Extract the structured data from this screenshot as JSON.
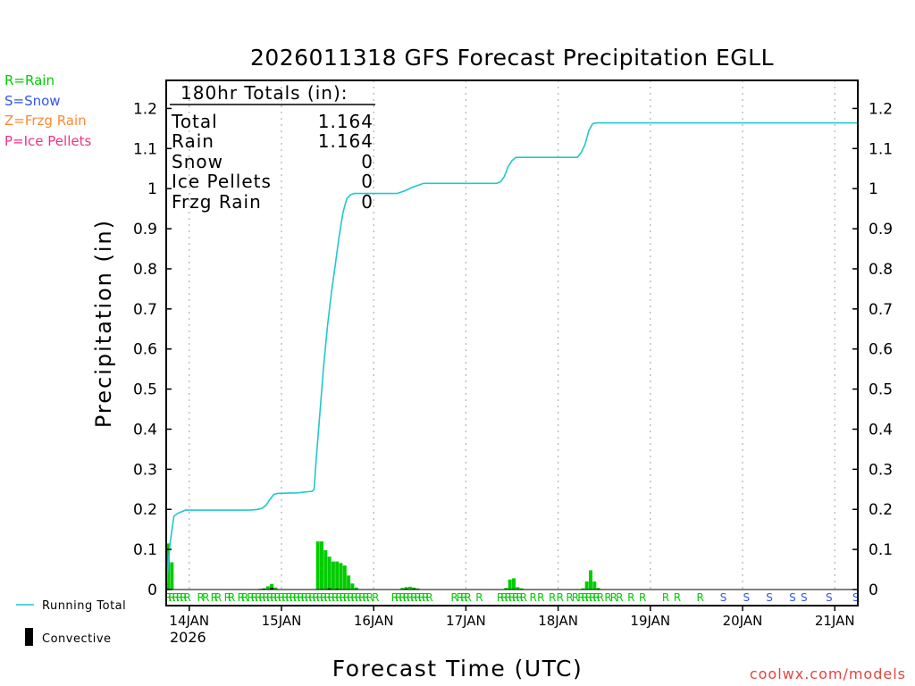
{
  "chart_data": {
    "type": "bar",
    "title": "2026011318 GFS Forecast Precipitation EGLL",
    "xlabel": "Forecast Time (UTC)",
    "ylabel": "Precipitation (in)",
    "ylim": [
      0,
      1.27
    ],
    "xlim_hours": [
      0,
      180
    ],
    "y_ticks": [
      "0",
      "0.1",
      "0.2",
      "0.3",
      "0.4",
      "0.5",
      "0.6",
      "0.7",
      "0.8",
      "0.9",
      "1",
      "1.1",
      "1.2"
    ],
    "x_ticks": [
      {
        "label": "14JAN",
        "hour": 6
      },
      {
        "label": "15JAN",
        "hour": 30
      },
      {
        "label": "16JAN",
        "hour": 54
      },
      {
        "label": "17JAN",
        "hour": 78
      },
      {
        "label": "18JAN",
        "hour": 102
      },
      {
        "label": "19JAN",
        "hour": 126
      },
      {
        "label": "20JAN",
        "hour": 150
      },
      {
        "label": "21JAN",
        "hour": 174
      }
    ],
    "year_label": "2026",
    "totals_header": "180hr Totals (in):",
    "totals": [
      {
        "label": "Total",
        "value": "1.164"
      },
      {
        "label": "Rain",
        "value": "1.164"
      },
      {
        "label": "Snow",
        "value": "0"
      },
      {
        "label": "Ice Pellets",
        "value": "0"
      },
      {
        "label": "Frzg Rain",
        "value": "0"
      }
    ],
    "bar_width_hours": 1,
    "precip_bars": [
      [
        0,
        0.115
      ],
      [
        1,
        0.068
      ],
      [
        24,
        0.002
      ],
      [
        25,
        0.003
      ],
      [
        26,
        0.008
      ],
      [
        27,
        0.014
      ],
      [
        28,
        0.005
      ],
      [
        39,
        0.12
      ],
      [
        40,
        0.12
      ],
      [
        41,
        0.098
      ],
      [
        42,
        0.082
      ],
      [
        43,
        0.07
      ],
      [
        44,
        0.07
      ],
      [
        45,
        0.066
      ],
      [
        46,
        0.06
      ],
      [
        47,
        0.035
      ],
      [
        48,
        0.015
      ],
      [
        49,
        0.005
      ],
      [
        61,
        0.004
      ],
      [
        62,
        0.006
      ],
      [
        63,
        0.007
      ],
      [
        64,
        0.005
      ],
      [
        65,
        0.003
      ],
      [
        88,
        0.004
      ],
      [
        89,
        0.025
      ],
      [
        90,
        0.028
      ],
      [
        91,
        0.006
      ],
      [
        92,
        0.003
      ],
      [
        108,
        0.003
      ],
      [
        109,
        0.02
      ],
      [
        110,
        0.048
      ],
      [
        111,
        0.02
      ],
      [
        112,
        0.004
      ]
    ],
    "convective_bars": [
      [
        25,
        0.002
      ],
      [
        27,
        0.004
      ],
      [
        42,
        0.003
      ],
      [
        44,
        0.002
      ],
      [
        62,
        0.002
      ],
      [
        64,
        0.002
      ]
    ],
    "running_total": [
      [
        0,
        0.0
      ],
      [
        0.5,
        0.06
      ],
      [
        1,
        0.115
      ],
      [
        2,
        0.183
      ],
      [
        3,
        0.19
      ],
      [
        5,
        0.198
      ],
      [
        10,
        0.198
      ],
      [
        22,
        0.198
      ],
      [
        24,
        0.2
      ],
      [
        25,
        0.203
      ],
      [
        26,
        0.21
      ],
      [
        27,
        0.225
      ],
      [
        28,
        0.237
      ],
      [
        29,
        0.24
      ],
      [
        34,
        0.241
      ],
      [
        38,
        0.245
      ],
      [
        38.5,
        0.25
      ],
      [
        39,
        0.32
      ],
      [
        40,
        0.44
      ],
      [
        41,
        0.56
      ],
      [
        42,
        0.66
      ],
      [
        43,
        0.74
      ],
      [
        44,
        0.81
      ],
      [
        45,
        0.88
      ],
      [
        46,
        0.94
      ],
      [
        47,
        0.975
      ],
      [
        48,
        0.985
      ],
      [
        49,
        0.988
      ],
      [
        52,
        0.988
      ],
      [
        60,
        0.988
      ],
      [
        62,
        0.994
      ],
      [
        64,
        1.003
      ],
      [
        66,
        1.01
      ],
      [
        67,
        1.013
      ],
      [
        72,
        1.013
      ],
      [
        80,
        1.013
      ],
      [
        86,
        1.013
      ],
      [
        87,
        1.017
      ],
      [
        88,
        1.03
      ],
      [
        89,
        1.055
      ],
      [
        90,
        1.07
      ],
      [
        91,
        1.078
      ],
      [
        95,
        1.078
      ],
      [
        100,
        1.078
      ],
      [
        107,
        1.078
      ],
      [
        108,
        1.09
      ],
      [
        109,
        1.11
      ],
      [
        110,
        1.145
      ],
      [
        111,
        1.162
      ],
      [
        112,
        1.164
      ],
      [
        180,
        1.164
      ]
    ],
    "ptype_row": [
      {
        "hour": 0.5,
        "type": "R"
      },
      {
        "hour": 1.5,
        "type": "R"
      },
      {
        "hour": 2.5,
        "type": "R"
      },
      {
        "hour": 3.5,
        "type": "R"
      },
      {
        "hour": 4.5,
        "type": "R"
      },
      {
        "hour": 5.5,
        "type": "R"
      },
      {
        "hour": 9,
        "type": "R"
      },
      {
        "hour": 10.3,
        "type": "R"
      },
      {
        "hour": 12.5,
        "type": "R"
      },
      {
        "hour": 13.5,
        "type": "R"
      },
      {
        "hour": 16,
        "type": "R"
      },
      {
        "hour": 17,
        "type": "R"
      },
      {
        "hour": 19.5,
        "type": "R"
      },
      {
        "hour": 20.5,
        "type": "R"
      },
      {
        "hour": 22,
        "type": "R"
      },
      {
        "hour": 23,
        "type": "R"
      },
      {
        "hour": 24,
        "type": "R"
      },
      {
        "hour": 25,
        "type": "R"
      },
      {
        "hour": 26,
        "type": "R"
      },
      {
        "hour": 27,
        "type": "R"
      },
      {
        "hour": 28,
        "type": "R"
      },
      {
        "hour": 29,
        "type": "R"
      },
      {
        "hour": 30,
        "type": "R"
      },
      {
        "hour": 31,
        "type": "R"
      },
      {
        "hour": 32,
        "type": "R"
      },
      {
        "hour": 33,
        "type": "R"
      },
      {
        "hour": 34,
        "type": "R"
      },
      {
        "hour": 35,
        "type": "R"
      },
      {
        "hour": 36,
        "type": "R"
      },
      {
        "hour": 37,
        "type": "R"
      },
      {
        "hour": 38,
        "type": "R"
      },
      {
        "hour": 39,
        "type": "R"
      },
      {
        "hour": 40,
        "type": "R"
      },
      {
        "hour": 41,
        "type": "R"
      },
      {
        "hour": 42,
        "type": "R"
      },
      {
        "hour": 43,
        "type": "R"
      },
      {
        "hour": 44,
        "type": "R"
      },
      {
        "hour": 45,
        "type": "R"
      },
      {
        "hour": 46,
        "type": "R"
      },
      {
        "hour": 47,
        "type": "R"
      },
      {
        "hour": 48,
        "type": "R"
      },
      {
        "hour": 49,
        "type": "R"
      },
      {
        "hour": 50,
        "type": "R"
      },
      {
        "hour": 51,
        "type": "R"
      },
      {
        "hour": 52,
        "type": "R"
      },
      {
        "hour": 53,
        "type": "R"
      },
      {
        "hour": 54.5,
        "type": "R"
      },
      {
        "hour": 59.5,
        "type": "R"
      },
      {
        "hour": 60.5,
        "type": "R"
      },
      {
        "hour": 61.5,
        "type": "R"
      },
      {
        "hour": 62.5,
        "type": "R"
      },
      {
        "hour": 63.5,
        "type": "R"
      },
      {
        "hour": 64.5,
        "type": "R"
      },
      {
        "hour": 65.5,
        "type": "R"
      },
      {
        "hour": 66.5,
        "type": "R"
      },
      {
        "hour": 67.5,
        "type": "R"
      },
      {
        "hour": 68.5,
        "type": "R"
      },
      {
        "hour": 75,
        "type": "R"
      },
      {
        "hour": 76.5,
        "type": "R"
      },
      {
        "hour": 77.5,
        "type": "R"
      },
      {
        "hour": 78.5,
        "type": "R"
      },
      {
        "hour": 81.5,
        "type": "R"
      },
      {
        "hour": 87,
        "type": "R"
      },
      {
        "hour": 88,
        "type": "R"
      },
      {
        "hour": 89,
        "type": "R"
      },
      {
        "hour": 90,
        "type": "R"
      },
      {
        "hour": 91,
        "type": "R"
      },
      {
        "hour": 92,
        "type": "R"
      },
      {
        "hour": 93,
        "type": "R"
      },
      {
        "hour": 95.5,
        "type": "R"
      },
      {
        "hour": 97.5,
        "type": "R"
      },
      {
        "hour": 100.5,
        "type": "R"
      },
      {
        "hour": 102.5,
        "type": "R"
      },
      {
        "hour": 105,
        "type": "R"
      },
      {
        "hour": 106.5,
        "type": "R"
      },
      {
        "hour": 108,
        "type": "R"
      },
      {
        "hour": 109,
        "type": "R"
      },
      {
        "hour": 110,
        "type": "R"
      },
      {
        "hour": 111,
        "type": "R"
      },
      {
        "hour": 112,
        "type": "R"
      },
      {
        "hour": 113,
        "type": "R"
      },
      {
        "hour": 115,
        "type": "R"
      },
      {
        "hour": 116.5,
        "type": "R"
      },
      {
        "hour": 118,
        "type": "R"
      },
      {
        "hour": 121,
        "type": "R"
      },
      {
        "hour": 124,
        "type": "R"
      },
      {
        "hour": 130,
        "type": "R"
      },
      {
        "hour": 133,
        "type": "R"
      },
      {
        "hour": 139,
        "type": "R"
      },
      {
        "hour": 145,
        "type": "S"
      },
      {
        "hour": 151,
        "type": "S"
      },
      {
        "hour": 157,
        "type": "S"
      },
      {
        "hour": 163,
        "type": "S"
      },
      {
        "hour": 166,
        "type": "S"
      },
      {
        "hour": 172.5,
        "type": "S"
      },
      {
        "hour": 179.5,
        "type": "S"
      }
    ]
  },
  "legend": {
    "rain": "R=Rain",
    "snow": "S=Snow",
    "frzg_rain": "Z=Frzg Rain",
    "ice_pellets": "P=Ice Pellets",
    "running_total": "Running Total",
    "convective": "Convective"
  },
  "credit": "coolwx.com/models",
  "colors": {
    "rain": "#00cc00",
    "snow": "#3355ee",
    "frzg_rain": "#ff8833",
    "ice_pellets": "#ee3388",
    "running_total": "#20c8cc",
    "convective": "#000000",
    "credit": "#e8423c"
  }
}
